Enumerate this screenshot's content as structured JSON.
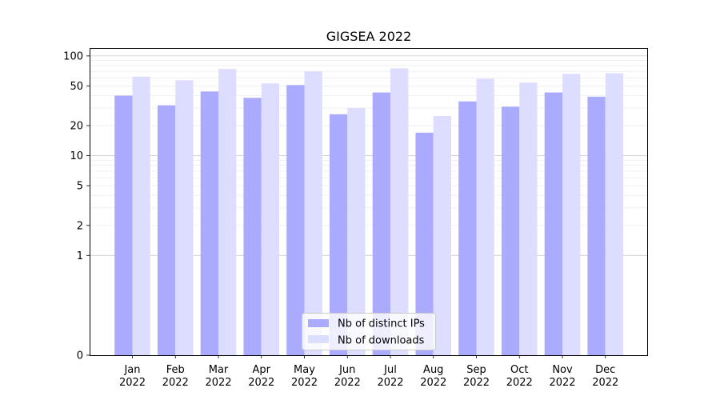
{
  "chart_data": {
    "type": "bar",
    "title": "GIGSEA 2022",
    "xlabel": "",
    "ylabel": "",
    "y_scale": "symlog",
    "ylim": [
      0,
      120
    ],
    "grid": true,
    "legend_position": "bottom-center",
    "categories": [
      {
        "month": "Jan",
        "year": "2022"
      },
      {
        "month": "Feb",
        "year": "2022"
      },
      {
        "month": "Mar",
        "year": "2022"
      },
      {
        "month": "Apr",
        "year": "2022"
      },
      {
        "month": "May",
        "year": "2022"
      },
      {
        "month": "Jun",
        "year": "2022"
      },
      {
        "month": "Jul",
        "year": "2022"
      },
      {
        "month": "Aug",
        "year": "2022"
      },
      {
        "month": "Sep",
        "year": "2022"
      },
      {
        "month": "Oct",
        "year": "2022"
      },
      {
        "month": "Nov",
        "year": "2022"
      },
      {
        "month": "Dec",
        "year": "2022"
      }
    ],
    "y_ticks": [
      {
        "value": 0,
        "label": "0"
      },
      {
        "value": 1,
        "label": "1"
      },
      {
        "value": 2,
        "label": "2"
      },
      {
        "value": 5,
        "label": "5"
      },
      {
        "value": 10,
        "label": "10"
      },
      {
        "value": 20,
        "label": "20"
      },
      {
        "value": 50,
        "label": "50"
      },
      {
        "value": 100,
        "label": "100"
      }
    ],
    "series": [
      {
        "name": "Nb of distinct IPs",
        "color": "#aaaaff",
        "values": [
          40,
          32,
          44,
          38,
          51,
          26,
          43,
          17,
          35,
          31,
          43,
          39
        ]
      },
      {
        "name": "Nb of downloads",
        "color": "#ddddff",
        "values": [
          62,
          57,
          74,
          53,
          70,
          30,
          75,
          25,
          59,
          54,
          66,
          67
        ]
      }
    ]
  }
}
